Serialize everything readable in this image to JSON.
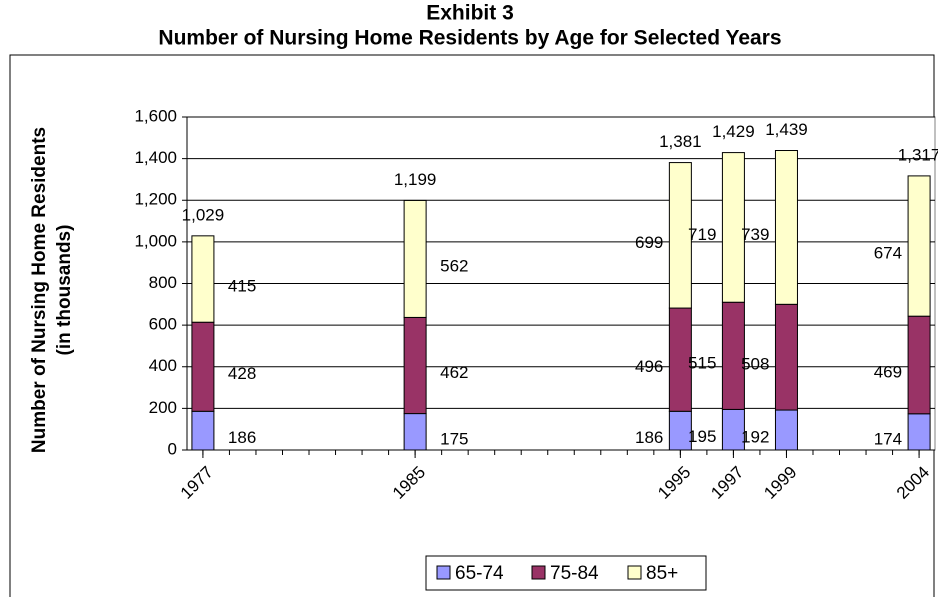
{
  "chart_data": {
    "type": "stacked_bar",
    "title": "Exhibit 3",
    "subtitle": "Number of Nursing Home Residents by Age for Selected Years",
    "y_label": [
      "Number of Nursing Home Residents",
      "(in thousands)"
    ],
    "x": [
      1977,
      1985,
      1995,
      1997,
      1999,
      2004
    ],
    "series": [
      {
        "name": "65-74",
        "color": "#9999ff",
        "values": [
          186,
          175,
          186,
          195,
          192,
          174
        ]
      },
      {
        "name": "75-84",
        "color": "#993366",
        "values": [
          428,
          462,
          496,
          515,
          508,
          469
        ]
      },
      {
        "name": "85+",
        "color": "#ffffcc",
        "values": [
          415,
          562,
          699,
          719,
          739,
          674
        ]
      }
    ],
    "totals": [
      1029,
      1199,
      1381,
      1429,
      1439,
      1317
    ],
    "total_labels": [
      "1,029",
      "1,199",
      "1,381",
      "1,429",
      "1,439",
      "1,317"
    ],
    "xlim": [
      1976.4,
      2004.6
    ],
    "xticks": [
      1977,
      1985,
      1995,
      1997,
      1999,
      2004
    ],
    "ylim": [
      0,
      1600
    ],
    "yticks": [
      0,
      200,
      400,
      600,
      800,
      {
        "value": 1000,
        "label": "1,000"
      },
      {
        "value": 1200,
        "label": "1,200"
      },
      {
        "value": 1400,
        "label": "1,400"
      },
      {
        "value": 1600,
        "label": "1,600"
      }
    ],
    "grid": true,
    "legend": "bottom"
  }
}
